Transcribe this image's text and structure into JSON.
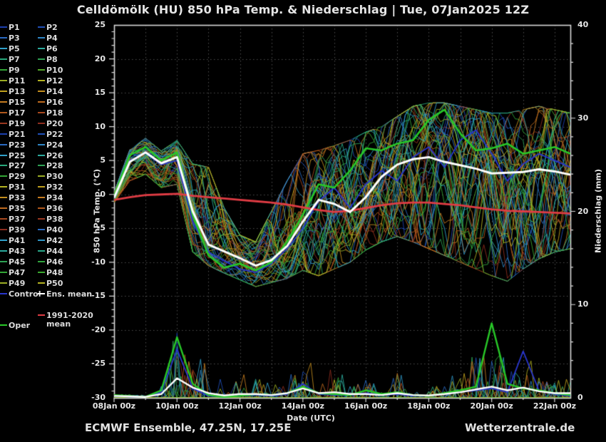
{
  "title": "Celldömölk  (HU)  850 hPa Temp. & Niederschlag | Tue, 07Jan2025 12Z",
  "footer": {
    "left": "ECMWF Ensemble, 47.25N, 17.25E",
    "right": "Wetterzentrale.de"
  },
  "colors": {
    "background": "#000000",
    "grid": "#4f4f4f",
    "axis": "#d9d9d9",
    "text": "#e6e6e6",
    "control": "#2936cc",
    "ens_mean": "#ffffff",
    "climate_mean": "#e03c44",
    "oper": "#28c828"
  },
  "legend": {
    "control": {
      "label": "Control",
      "color": "#2936cc"
    },
    "ens_mean": {
      "label": "Ens. mean",
      "color": "#ffffff"
    },
    "climate": {
      "label_line1": "1991-2020",
      "label_line2": "mean",
      "color": "#e03c44"
    },
    "oper": {
      "label": "Oper",
      "color": "#28c828"
    },
    "members": [
      {
        "label": "P1",
        "color": "#1c3fae"
      },
      {
        "label": "P2",
        "color": "#2050b8"
      },
      {
        "label": "P3",
        "color": "#2a6ac2"
      },
      {
        "label": "P4",
        "color": "#2f86c6"
      },
      {
        "label": "P5",
        "color": "#30a0ca"
      },
      {
        "label": "P6",
        "color": "#2bab9e"
      },
      {
        "label": "P7",
        "color": "#28a87c"
      },
      {
        "label": "P8",
        "color": "#2ea254"
      },
      {
        "label": "P9",
        "color": "#32a635"
      },
      {
        "label": "P10",
        "color": "#55aa2a"
      },
      {
        "label": "P11",
        "color": "#9cae24"
      },
      {
        "label": "P12",
        "color": "#b4b322"
      },
      {
        "label": "P13",
        "color": "#c0a01d"
      },
      {
        "label": "P14",
        "color": "#c38d1e"
      },
      {
        "label": "P15",
        "color": "#c67c20"
      },
      {
        "label": "P16",
        "color": "#bf6a1e"
      },
      {
        "label": "P17",
        "color": "#b2581c"
      },
      {
        "label": "P18",
        "color": "#a8481e"
      },
      {
        "label": "P19",
        "color": "#9b3820"
      },
      {
        "label": "P20",
        "color": "#8e2d1f"
      },
      {
        "label": "P21",
        "color": "#1c3fae"
      },
      {
        "label": "P22",
        "color": "#2050b8"
      },
      {
        "label": "P23",
        "color": "#2a6ac2"
      },
      {
        "label": "P24",
        "color": "#2f86c6"
      },
      {
        "label": "P25",
        "color": "#30a0ca"
      },
      {
        "label": "P26",
        "color": "#2bab9e"
      },
      {
        "label": "P27",
        "color": "#28a87c"
      },
      {
        "label": "P28",
        "color": "#2ea254"
      },
      {
        "label": "P29",
        "color": "#32a635"
      },
      {
        "label": "P30",
        "color": "#9cae24"
      },
      {
        "label": "P31",
        "color": "#b4b322"
      },
      {
        "label": "P32",
        "color": "#c0a01d"
      },
      {
        "label": "P33",
        "color": "#c38d1e"
      },
      {
        "label": "P34",
        "color": "#c67c20"
      },
      {
        "label": "P35",
        "color": "#bf6a1e"
      },
      {
        "label": "P36",
        "color": "#b2581c"
      },
      {
        "label": "P37",
        "color": "#a8481e"
      },
      {
        "label": "P38",
        "color": "#9b3820"
      },
      {
        "label": "P39",
        "color": "#8e2d1f"
      },
      {
        "label": "P40",
        "color": "#2a6ac2"
      },
      {
        "label": "P41",
        "color": "#30a0ca"
      },
      {
        "label": "P42",
        "color": "#2f96c6"
      },
      {
        "label": "P43",
        "color": "#2bab9e"
      },
      {
        "label": "P44",
        "color": "#29a88a"
      },
      {
        "label": "P45",
        "color": "#2ea254"
      },
      {
        "label": "P46",
        "color": "#31a63e"
      },
      {
        "label": "P47",
        "color": "#32a635"
      },
      {
        "label": "P48",
        "color": "#3aa82e"
      },
      {
        "label": "P49",
        "color": "#9cae24"
      },
      {
        "label": "P50",
        "color": "#b4b322"
      }
    ]
  },
  "chart_data": {
    "type": "line",
    "title": "Celldömölk  (HU)  850 hPa Temp. & Niederschlag | Tue, 07Jan2025 12Z",
    "xlabel": "Date (UTC)",
    "ylabel_left": "850 hPa Temp. (°C)",
    "ylabel_right": "Niederschlag (mm)",
    "x_tick_labels": [
      "08Jan 00z",
      "10Jan 00z",
      "12Jan 00z",
      "14Jan 00z",
      "16Jan 00z",
      "18Jan 00z",
      "20Jan 00z",
      "22Jan 00z"
    ],
    "x_tick_days": [
      0,
      2,
      4,
      6,
      8,
      10,
      12,
      14
    ],
    "x_range_days": [
      0,
      14.5
    ],
    "x_minor_every_days": 1,
    "ylim_left": [
      -30,
      25
    ],
    "yticks_left": [
      25,
      20,
      15,
      10,
      5,
      0,
      -5,
      -10,
      -15,
      -20,
      -25,
      -30
    ],
    "ylim_right": [
      0,
      40
    ],
    "yticks_right": [
      40,
      30,
      20,
      10,
      0
    ],
    "n_members": 50,
    "time_step_days": 0.5,
    "legend_position": "left",
    "grid": "dotted",
    "series": {
      "ens_mean_temp": [
        -0.5,
        4.8,
        6.2,
        4.6,
        5.5,
        -2.5,
        -7.4,
        -8.4,
        -9.4,
        -10.5,
        -9.7,
        -7.6,
        -4.0,
        -0.8,
        -1.4,
        -2.6,
        -0.4,
        2.6,
        4.4,
        5.2,
        5.5,
        4.8,
        4.3,
        3.8,
        3.1,
        3.2,
        3.3,
        3.7,
        3.4,
        2.9
      ],
      "climate_mean_temp": [
        -0.8,
        -0.4,
        -0.1,
        0.0,
        0.1,
        -0.2,
        -0.4,
        -0.6,
        -0.8,
        -1.0,
        -1.2,
        -1.5,
        -1.9,
        -2.3,
        -2.6,
        -2.4,
        -2.0,
        -1.6,
        -1.3,
        -1.2,
        -1.2,
        -1.4,
        -1.6,
        -1.9,
        -2.2,
        -2.4,
        -2.5,
        -2.6,
        -2.7,
        -2.8
      ],
      "oper_temp": [
        -0.3,
        5.8,
        7.0,
        5.0,
        6.2,
        -3.0,
        -9.0,
        -10.8,
        -10.2,
        -11.2,
        -10.0,
        -7.0,
        -3.0,
        1.5,
        1.0,
        3.5,
        6.8,
        6.5,
        7.5,
        8.0,
        11.0,
        12.5,
        9.0,
        6.5,
        6.8,
        7.5,
        6.0,
        6.5,
        7.0,
        6.0
      ],
      "control_temp": [
        -0.5,
        5.0,
        6.1,
        4.4,
        5.0,
        -4.0,
        -8.5,
        -9.8,
        -11.0,
        -11.5,
        -10.2,
        -8.0,
        -5.0,
        -1.0,
        1.0,
        -2.0,
        1.5,
        3.5,
        2.0,
        5.5,
        7.0,
        4.0,
        8.0,
        9.5,
        6.0,
        2.0,
        4.5,
        6.0,
        5.0,
        4.0
      ],
      "envelope_min_temp": [
        -1.2,
        2.0,
        3.0,
        1.0,
        1.5,
        -8.5,
        -10.5,
        -11.6,
        -12.6,
        -13.6,
        -13.0,
        -12.4,
        -11.2,
        -12.0,
        -11.0,
        -10.0,
        -8.2,
        -7.0,
        -6.2,
        -7.0,
        -8.0,
        -9.0,
        -10.0,
        -11.0,
        -12.0,
        -12.8,
        -11.0,
        -9.5,
        -8.5,
        -8.0
      ],
      "envelope_max_temp": [
        0.3,
        6.6,
        8.3,
        6.4,
        8.0,
        4.5,
        4.0,
        -2.0,
        -6.0,
        -7.0,
        -2.5,
        2.0,
        6.0,
        6.5,
        7.2,
        8.0,
        9.2,
        10.0,
        11.5,
        13.0,
        13.5,
        13.5,
        13.0,
        12.5,
        12.0,
        12.0,
        12.5,
        13.0,
        12.5,
        12.0
      ],
      "ens_mean_precip": [
        0.2,
        0.15,
        0.1,
        0.4,
        2.1,
        1.1,
        0.5,
        0.25,
        0.4,
        0.4,
        0.3,
        0.5,
        1.0,
        0.5,
        0.6,
        0.4,
        0.4,
        0.3,
        0.5,
        0.3,
        0.25,
        0.4,
        0.6,
        0.9,
        1.2,
        0.8,
        1.1,
        0.7,
        0.5,
        0.5
      ],
      "oper_precip": [
        0.3,
        0.2,
        0.1,
        0.8,
        6.5,
        1.5,
        0.3,
        0.1,
        0.2,
        0.4,
        0.3,
        0.5,
        1.2,
        0.5,
        0.4,
        0.3,
        0.8,
        0.4,
        0.6,
        0.3,
        0.2,
        0.5,
        0.8,
        1.2,
        8.0,
        1.5,
        1.0,
        0.8,
        0.5,
        0.3
      ],
      "control_precip": [
        0.2,
        0.1,
        0.1,
        0.6,
        5.2,
        1.0,
        0.2,
        0.1,
        0.2,
        0.3,
        0.2,
        0.4,
        1.5,
        0.4,
        0.3,
        0.3,
        0.5,
        0.3,
        0.4,
        0.2,
        0.2,
        0.4,
        0.6,
        0.8,
        1.0,
        0.6,
        5.0,
        0.8,
        0.4,
        0.2
      ],
      "envelope_max_precip": [
        0.8,
        0.5,
        0.3,
        1.5,
        7.8,
        4.0,
        6.2,
        1.2,
        3.0,
        2.5,
        1.5,
        2.5,
        6.5,
        2.5,
        4.0,
        2.0,
        2.0,
        1.5,
        3.3,
        1.5,
        1.0,
        2.0,
        3.0,
        5.4,
        8.0,
        4.0,
        8.1,
        4.0,
        2.0,
        2.5
      ]
    }
  }
}
